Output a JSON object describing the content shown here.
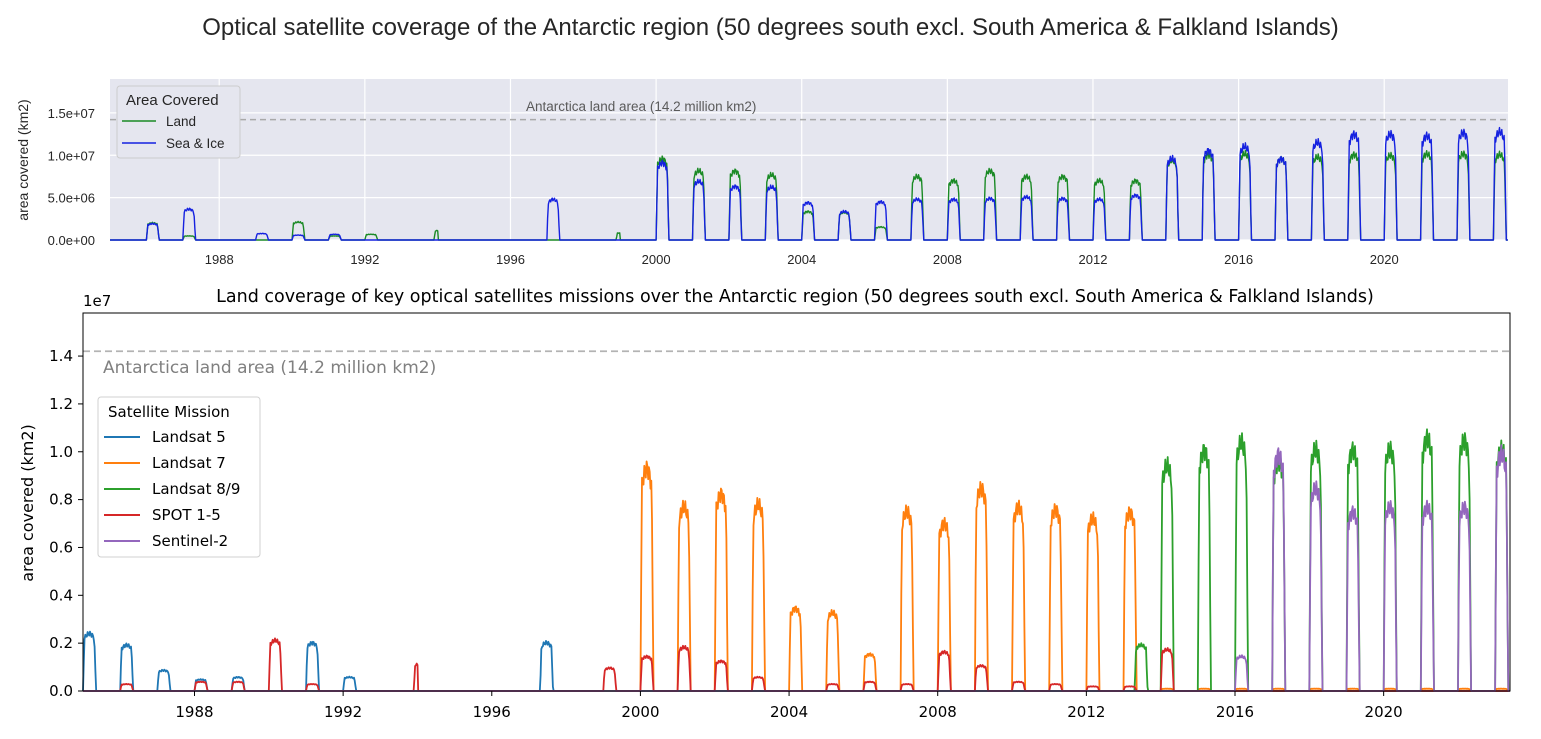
{
  "suptitle": "Optical satellite coverage of the Antarctic region (50 degrees south excl. South America & Falkland Islands)",
  "chart_data": [
    {
      "type": "line",
      "ylabel": "area covered (km2)",
      "xlim": [
        1985.0,
        2023.4
      ],
      "ylim": [
        0,
        19000000
      ],
      "x_ticks": [
        1988,
        1992,
        1996,
        2000,
        2004,
        2008,
        2012,
        2016,
        2020
      ],
      "y_ticks": [
        0,
        5000000,
        10000000,
        15000000
      ],
      "y_tick_labels": [
        "0.0e+00",
        "5.0e+06",
        "1.0e+07",
        "1.5e+07"
      ],
      "grid": true,
      "background": "#e5e6ef",
      "reference_line": {
        "y": 14200000,
        "label": "Antarctica land area (14.2 million km2)"
      },
      "legend": {
        "title": "Area Covered",
        "loc": "upper-left"
      },
      "series": [
        {
          "name": "Land",
          "color": "#1a8a25",
          "seasons": [
            [
              1986,
              2100000
            ],
            [
              1987,
              500000
            ],
            [
              1990,
              2200000
            ],
            [
              1991,
              500000
            ],
            [
              1992,
              700000
            ],
            [
              1993.9,
              1200000
            ],
            [
              1998.9,
              900000
            ],
            [
              2000,
              10000000
            ],
            [
              2001,
              8500000
            ],
            [
              2002,
              8500000
            ],
            [
              2003,
              8000000
            ],
            [
              2004,
              3500000
            ],
            [
              2005,
              3400000
            ],
            [
              2006,
              1600000
            ],
            [
              2007,
              7800000
            ],
            [
              2008,
              7300000
            ],
            [
              2009,
              8500000
            ],
            [
              2010,
              7800000
            ],
            [
              2011,
              7800000
            ],
            [
              2012,
              7300000
            ],
            [
              2013,
              7300000
            ],
            [
              2014,
              9800000
            ],
            [
              2015,
              10500000
            ],
            [
              2016,
              10600000
            ],
            [
              2017,
              10000000
            ],
            [
              2018,
              10200000
            ],
            [
              2019,
              10500000
            ],
            [
              2020,
              10400000
            ],
            [
              2021,
              10600000
            ],
            [
              2022,
              10600000
            ],
            [
              2023,
              10500000
            ]
          ]
        },
        {
          "name": "Sea & Ice",
          "color": "#1521e0",
          "seasons": [
            [
              1986,
              2000000
            ],
            [
              1987,
              3800000
            ],
            [
              1989,
              800000
            ],
            [
              1990,
              600000
            ],
            [
              1991,
              700000
            ],
            [
              1997,
              5000000
            ],
            [
              2000,
              9500000
            ],
            [
              2001,
              7200000
            ],
            [
              2002,
              6600000
            ],
            [
              2003,
              6500000
            ],
            [
              2004,
              4600000
            ],
            [
              2005,
              3500000
            ],
            [
              2006,
              4700000
            ],
            [
              2007,
              5000000
            ],
            [
              2008,
              5000000
            ],
            [
              2009,
              5100000
            ],
            [
              2010,
              5300000
            ],
            [
              2011,
              5100000
            ],
            [
              2012,
              5000000
            ],
            [
              2013,
              5500000
            ],
            [
              2014,
              10000000
            ],
            [
              2015,
              11000000
            ],
            [
              2016,
              11500000
            ],
            [
              2017,
              10000000
            ],
            [
              2018,
              12000000
            ],
            [
              2019,
              13000000
            ],
            [
              2020,
              13000000
            ],
            [
              2021,
              12800000
            ],
            [
              2022,
              13200000
            ],
            [
              2023,
              13300000
            ]
          ]
        }
      ]
    },
    {
      "type": "line",
      "title": "Land coverage of key optical satellites missions over the Antarctic region (50 degrees south excl. South America & Falkland Islands)",
      "ylabel": "area covered (km2)",
      "y_offset_label": "1e7",
      "xlim": [
        1985.0,
        2023.4
      ],
      "ylim": [
        0,
        1.58
      ],
      "x_ticks": [
        1988,
        1992,
        1996,
        2000,
        2004,
        2008,
        2012,
        2016,
        2020
      ],
      "y_ticks": [
        0.0,
        0.2,
        0.4,
        0.6,
        0.8,
        1.0,
        1.2,
        1.4
      ],
      "y_tick_labels": [
        "0.0",
        "0.2",
        "0.4",
        "0.6",
        "0.8",
        "1.0",
        "1.2",
        "1.4"
      ],
      "grid": false,
      "reference_line": {
        "y": 1.42,
        "label": "Antarctica land area (14.2 million km2)"
      },
      "legend": {
        "title": "Satellite Mission",
        "loc": "upper-left"
      },
      "series": [
        {
          "name": "Landsat 5",
          "color": "#1f77b4",
          "seasons": [
            [
              1985,
              2.5
            ],
            [
              1986,
              2.0
            ],
            [
              1987,
              0.9
            ],
            [
              1988,
              0.5
            ],
            [
              1989,
              0.6
            ],
            [
              1991,
              2.1
            ],
            [
              1992,
              0.6
            ],
            [
              1997,
              2.1
            ],
            [
              1997.3,
              2.1
            ]
          ]
        },
        {
          "name": "Landsat 7",
          "color": "#ff7f0e",
          "seasons": [
            [
              2000,
              9.7
            ],
            [
              2001,
              8.0
            ],
            [
              2002,
              8.6
            ],
            [
              2003,
              8.1
            ],
            [
              2004,
              3.6
            ],
            [
              2005,
              3.4
            ],
            [
              2006,
              1.6
            ],
            [
              2007,
              7.8
            ],
            [
              2008,
              7.3
            ],
            [
              2009,
              8.8
            ],
            [
              2010,
              8.0
            ],
            [
              2011,
              7.9
            ],
            [
              2012,
              7.5
            ],
            [
              2013,
              7.8
            ],
            [
              2014,
              0.1
            ],
            [
              2015,
              0.1
            ],
            [
              2016,
              0.1
            ],
            [
              2017,
              0.1
            ],
            [
              2018,
              0.1
            ],
            [
              2019,
              0.1
            ],
            [
              2020,
              0.1
            ],
            [
              2021,
              0.1
            ],
            [
              2022,
              0.1
            ],
            [
              2023,
              0.1
            ]
          ]
        },
        {
          "name": "Landsat 8/9",
          "color": "#2ca02c",
          "seasons": [
            [
              2013.3,
              2.0
            ],
            [
              2014,
              9.8
            ],
            [
              2015,
              10.5
            ],
            [
              2016,
              10.8
            ],
            [
              2017,
              10.0
            ],
            [
              2018,
              10.5
            ],
            [
              2019,
              10.5
            ],
            [
              2020,
              10.5
            ],
            [
              2021,
              11.0
            ],
            [
              2022,
              10.9
            ],
            [
              2023,
              10.5
            ]
          ]
        },
        {
          "name": "SPOT 1-5",
          "color": "#d62728",
          "seasons": [
            [
              1986,
              0.3
            ],
            [
              1988,
              0.4
            ],
            [
              1989,
              0.4
            ],
            [
              1990,
              2.2
            ],
            [
              1991,
              0.3
            ],
            [
              1993.9,
              1.2
            ],
            [
              1999,
              1.0
            ],
            [
              2000,
              1.5
            ],
            [
              2001,
              1.9
            ],
            [
              2002,
              1.3
            ],
            [
              2003,
              0.6
            ],
            [
              2005,
              0.3
            ],
            [
              2006,
              0.4
            ],
            [
              2007,
              0.3
            ],
            [
              2008,
              1.7
            ],
            [
              2009,
              1.1
            ],
            [
              2010,
              0.4
            ],
            [
              2011,
              0.3
            ],
            [
              2012,
              0.2
            ],
            [
              2013,
              0.2
            ],
            [
              2014,
              1.8
            ]
          ]
        },
        {
          "name": "Sentinel-2",
          "color": "#9467bd",
          "seasons": [
            [
              2016,
              1.5
            ],
            [
              2017,
              10.3
            ],
            [
              2018,
              8.8
            ],
            [
              2019,
              7.8
            ],
            [
              2020,
              8.0
            ],
            [
              2021,
              8.0
            ],
            [
              2022,
              8.0
            ],
            [
              2023,
              10.3
            ]
          ]
        }
      ]
    }
  ]
}
